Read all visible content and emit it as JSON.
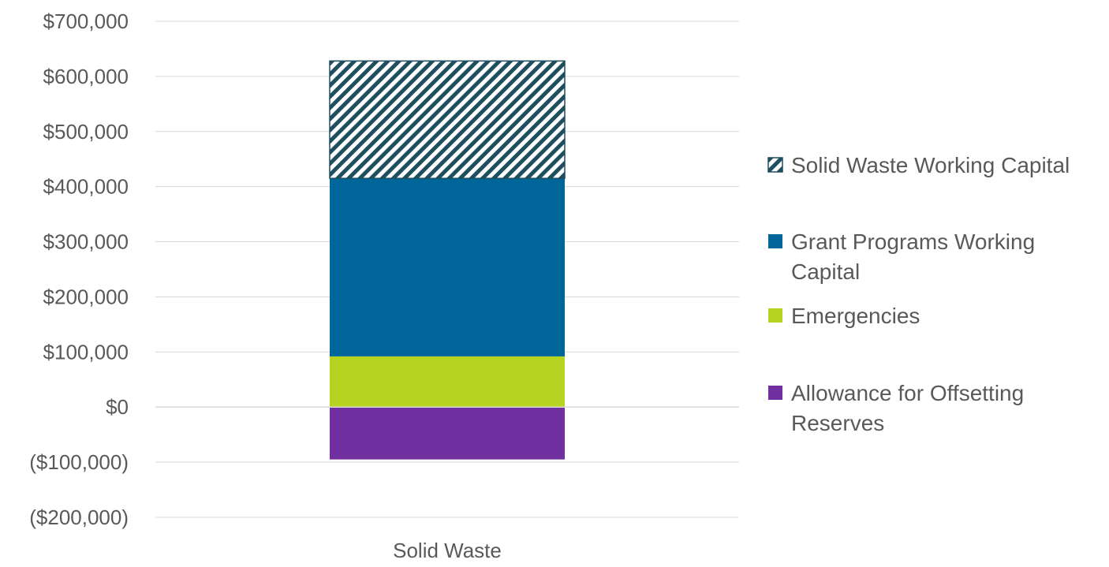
{
  "chart_data": {
    "type": "bar",
    "stacked": true,
    "categories": [
      "Solid Waste"
    ],
    "series": [
      {
        "name": "Allowance for Offsetting Reserves",
        "values": [
          -95000
        ],
        "color": "#7030A0",
        "pattern": "solid"
      },
      {
        "name": "Emergencies",
        "values": [
          92000
        ],
        "color": "#B5D320",
        "pattern": "solid"
      },
      {
        "name": "Grant Programs Working Capital",
        "values": [
          323000
        ],
        "color": "#006699",
        "pattern": "solid"
      },
      {
        "name": "Solid Waste Working Capital",
        "values": [
          213000
        ],
        "color": "#1F4E5F",
        "pattern": "diagonal-hatch"
      }
    ],
    "legend_order": [
      "Solid Waste Working Capital",
      "Grant Programs Working Capital",
      "Emergencies",
      "Allowance for Offsetting Reserves"
    ],
    "ylim": [
      -200000,
      700000
    ],
    "yticks": [
      700000,
      600000,
      500000,
      400000,
      300000,
      200000,
      100000,
      0,
      -100000,
      -200000
    ],
    "ytick_labels": [
      "$700,000",
      "$600,000",
      "$500,000",
      "$400,000",
      "$300,000",
      "$200,000",
      "$100,000",
      "$0",
      "($100,000)",
      "($200,000)"
    ],
    "grid": true,
    "legend_position": "right",
    "title": "",
    "xlabel": "",
    "ylabel": ""
  }
}
